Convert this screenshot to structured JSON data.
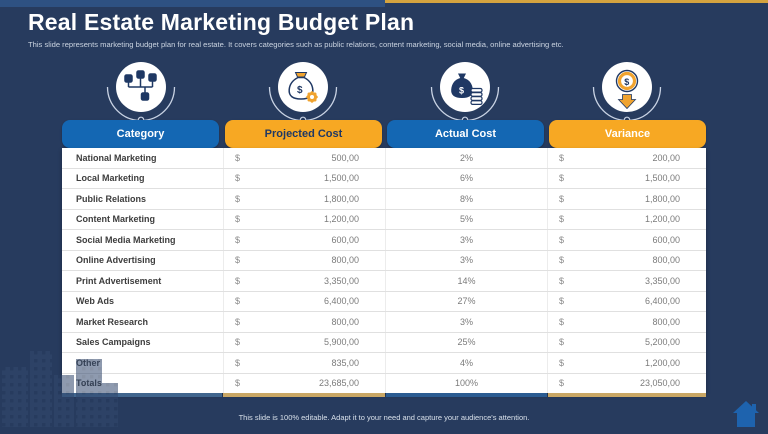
{
  "slide": {
    "title": "Real Estate Marketing Budget Plan",
    "subtitle": "This slide represents marketing budget plan for real estate. It covers categories such as public relations, content marketing, social media, online advertising etc.",
    "footer": "This slide is 100% editable. Adapt it to your need and capture your audience's attention."
  },
  "palette": {
    "background": "#273B5E",
    "accent_blue": "#1467B3",
    "accent_orange": "#F7A823",
    "navy_text": "#1F3864",
    "top_strip_blue": "#2E5182",
    "top_strip_gold": "#D4A33F"
  },
  "icons": [
    "org-chart-icon",
    "money-bag-gear-icon",
    "money-sack-coins-icon",
    "coin-down-arrow-icon"
  ],
  "table": {
    "currency_symbol": "$",
    "headers": [
      {
        "label": "Category",
        "color": "#1467B3",
        "text_color": "#FFFFFF"
      },
      {
        "label": "Projected Cost",
        "color": "#F7A823",
        "text_color": "#1F3864"
      },
      {
        "label": "Actual Cost",
        "color": "#1467B3",
        "text_color": "#FFFFFF"
      },
      {
        "label": "Variance",
        "color": "#F7A823",
        "text_color": "#FFFFFF"
      }
    ],
    "rows": [
      {
        "category": "National Marketing",
        "projected": "500,00",
        "actual": "2%",
        "variance": "200,00"
      },
      {
        "category": "Local Marketing",
        "projected": "1,500,00",
        "actual": "6%",
        "variance": "1,500,00"
      },
      {
        "category": "Public Relations",
        "projected": "1,800,00",
        "actual": "8%",
        "variance": "1,800,00"
      },
      {
        "category": "Content Marketing",
        "projected": "1,200,00",
        "actual": "5%",
        "variance": "1,200,00"
      },
      {
        "category": "Social Media Marketing",
        "projected": "600,00",
        "actual": "3%",
        "variance": "600,00"
      },
      {
        "category": "Online Advertising",
        "projected": "800,00",
        "actual": "3%",
        "variance": "800,00"
      },
      {
        "category": "Print Advertisement",
        "projected": "3,350,00",
        "actual": "14%",
        "variance": "3,350,00"
      },
      {
        "category": "Web Ads",
        "projected": "6,400,00",
        "actual": "27%",
        "variance": "6,400,00"
      },
      {
        "category": "Market Research",
        "projected": "800,00",
        "actual": "3%",
        "variance": "800,00"
      },
      {
        "category": "Sales Campaigns",
        "projected": "5,900,00",
        "actual": "25%",
        "variance": "5,200,00"
      },
      {
        "category": "Other",
        "projected": "835,00",
        "actual": "4%",
        "variance": "1,200,00"
      },
      {
        "category": "Totals",
        "projected": "23,685,00",
        "actual": "100%",
        "variance": "23,050,00"
      }
    ]
  }
}
